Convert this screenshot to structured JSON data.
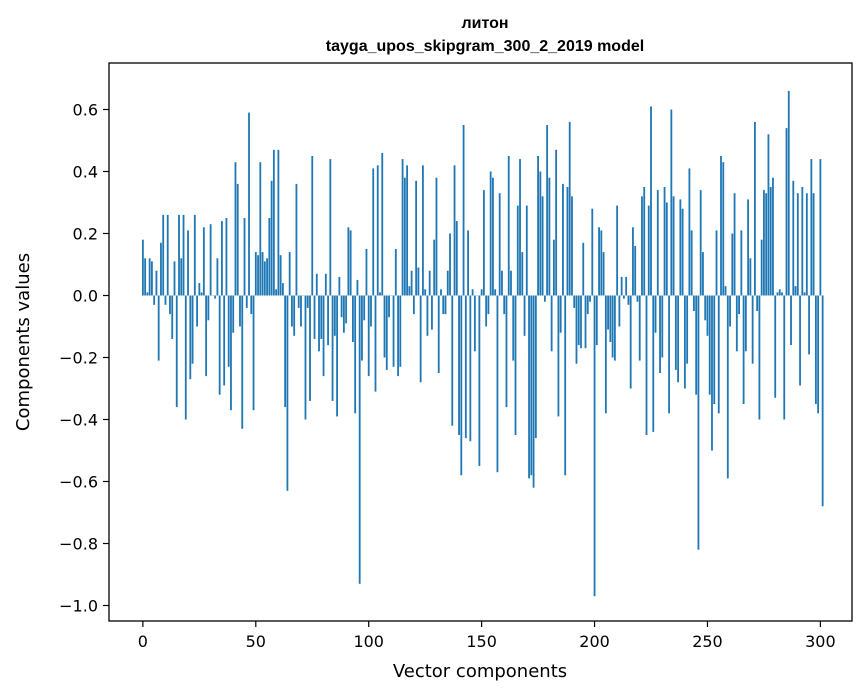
{
  "chart_data": {
    "type": "bar",
    "title": "литон",
    "subtitle": "tayga_upos_skipgram_300_2_2019 model",
    "xlabel": "Vector components",
    "ylabel": "Components values",
    "xlim": [
      -15,
      314
    ],
    "ylim": [
      -1.05,
      0.75
    ],
    "xticks": [
      0,
      50,
      100,
      150,
      200,
      250,
      300
    ],
    "yticks": [
      -1.0,
      -0.8,
      -0.6,
      -0.4,
      -0.2,
      0.0,
      0.2,
      0.4,
      0.6
    ],
    "xtick_labels": [
      "0",
      "50",
      "100",
      "150",
      "200",
      "250",
      "300"
    ],
    "ytick_labels": [
      "−1.0",
      "−0.8",
      "−0.6",
      "−0.4",
      "−0.2",
      "0.0",
      "0.2",
      "0.4",
      "0.6"
    ],
    "bar_color": "#1f77b4",
    "grid": false,
    "series": [
      {
        "name": "литон",
        "values": [
          0.18,
          0.12,
          0.01,
          0.12,
          0.11,
          -0.03,
          0.08,
          -0.21,
          0.17,
          0.26,
          -0.03,
          0.26,
          -0.06,
          -0.14,
          0.11,
          -0.36,
          0.26,
          0.12,
          0.26,
          -0.4,
          0.21,
          -0.27,
          -0.22,
          0.26,
          -0.1,
          0.04,
          0.01,
          0.22,
          -0.26,
          -0.08,
          0.23,
          0.0,
          -0.01,
          0.12,
          -0.32,
          0.24,
          -0.29,
          0.25,
          -0.23,
          -0.37,
          -0.12,
          0.43,
          0.36,
          -0.1,
          -0.43,
          0.25,
          -0.04,
          0.59,
          -0.06,
          -0.37,
          0.14,
          0.13,
          0.43,
          0.14,
          0.11,
          0.12,
          0.25,
          0.37,
          0.47,
          0.02,
          0.47,
          0.13,
          0.04,
          -0.36,
          -0.63,
          0.14,
          -0.1,
          -0.13,
          0.36,
          -0.04,
          -0.1,
          0.0,
          -0.4,
          -0.04,
          -0.34,
          0.45,
          -0.14,
          0.07,
          -0.18,
          -0.14,
          -0.26,
          0.07,
          -0.16,
          0.44,
          -0.34,
          -0.13,
          -0.39,
          0.06,
          -0.07,
          -0.12,
          -0.09,
          0.22,
          0.21,
          -0.15,
          -0.38,
          0.05,
          -0.93,
          -0.21,
          -0.08,
          0.15,
          -0.26,
          -0.1,
          0.41,
          -0.31,
          0.42,
          0.01,
          0.46,
          -0.2,
          -0.24,
          -0.07,
          0.0,
          -0.23,
          0.15,
          -0.26,
          -0.23,
          0.44,
          0.38,
          0.42,
          0.03,
          0.08,
          -0.06,
          0.37,
          0.09,
          -0.28,
          0.42,
          0.02,
          -0.13,
          0.08,
          -0.11,
          0.18,
          0.38,
          -0.25,
          0.02,
          -0.06,
          -0.06,
          0.08,
          0.2,
          -0.42,
          0.42,
          0.24,
          -0.45,
          -0.58,
          0.55,
          -0.46,
          0.21,
          -0.47,
          0.02,
          -0.18,
          0.0,
          -0.55,
          0.02,
          0.34,
          -0.1,
          -0.06,
          0.4,
          0.38,
          0.02,
          -0.57,
          0.33,
          0.08,
          -0.06,
          -0.36,
          0.45,
          0.08,
          -0.21,
          -0.45,
          0.29,
          0.44,
          0.14,
          -0.13,
          0.29,
          -0.59,
          -0.58,
          -0.62,
          -0.46,
          0.45,
          0.4,
          0.32,
          -0.02,
          0.55,
          0.38,
          -0.18,
          0.18,
          0.47,
          -0.39,
          -0.12,
          0.36,
          -0.58,
          0.35,
          0.56,
          0.32,
          -0.04,
          -0.22,
          -0.16,
          -0.17,
          0.17,
          -0.17,
          -0.06,
          -0.02,
          0.28,
          -0.97,
          -0.16,
          0.22,
          0.21,
          0.14,
          -0.38,
          -0.11,
          -0.15,
          -0.2,
          -0.21,
          0.29,
          -0.1,
          0.06,
          -0.01,
          0.06,
          -0.03,
          -0.3,
          0.22,
          0.16,
          -0.02,
          -0.21,
          0.32,
          0.35,
          -0.45,
          0.29,
          0.61,
          -0.44,
          -0.12,
          0.34,
          -0.25,
          -0.2,
          0.35,
          0.3,
          -0.38,
          0.6,
          0.32,
          -0.24,
          -0.28,
          0.31,
          0.28,
          -0.3,
          -0.22,
          0.41,
          0.21,
          -0.05,
          -0.32,
          -0.82,
          0.34,
          0.14,
          -0.08,
          -0.13,
          -0.32,
          -0.5,
          -0.35,
          0.21,
          -0.38,
          0.45,
          0.43,
          0.03,
          -0.59,
          -0.1,
          0.2,
          0.33,
          -0.18,
          -0.06,
          0.21,
          -0.35,
          -0.18,
          0.31,
          0.12,
          -0.22,
          0.56,
          -0.05,
          -0.4,
          0.18,
          0.34,
          0.33,
          0.52,
          0.35,
          0.38,
          -0.33,
          0.01,
          0.02,
          0.01,
          -0.4,
          0.54,
          0.66,
          -0.16,
          0.37,
          0.03,
          0.33,
          -0.29,
          0.35,
          0.01,
          0.33,
          -0.19,
          0.44,
          0.33,
          -0.35,
          -0.38,
          0.44,
          -0.68
        ]
      }
    ]
  }
}
